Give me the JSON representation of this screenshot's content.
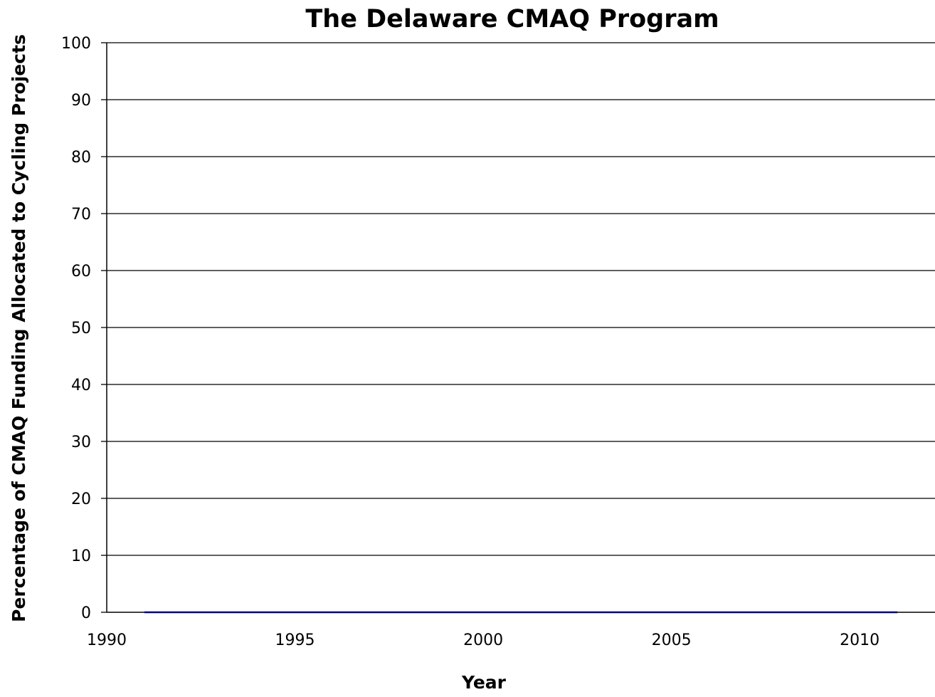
{
  "chart_data": {
    "type": "line",
    "title": "The Delaware CMAQ Program",
    "xlabel": "Year",
    "ylabel": "Percentage of CMAQ Funding Allocated to Cycling Projects",
    "xlim": [
      1990,
      2012
    ],
    "ylim": [
      0,
      100
    ],
    "x_ticks": [
      1990,
      1995,
      2000,
      2005,
      2010
    ],
    "y_ticks": [
      0,
      10,
      20,
      30,
      40,
      50,
      60,
      70,
      80,
      90,
      100
    ],
    "grid": {
      "horizontal": true,
      "vertical": false
    },
    "series": [
      {
        "color": "#000080",
        "x": [
          1991,
          1992,
          1993,
          1994,
          1995,
          1996,
          1997,
          1998,
          1999,
          2000,
          2001,
          2002,
          2003,
          2004,
          2005,
          2006,
          2007,
          2008,
          2009,
          2010,
          2011
        ],
        "values": [
          0,
          0,
          0,
          0,
          0,
          0,
          0,
          0,
          0,
          0,
          0,
          0,
          0,
          0,
          0,
          0,
          0,
          0,
          0,
          0,
          0
        ]
      }
    ]
  }
}
